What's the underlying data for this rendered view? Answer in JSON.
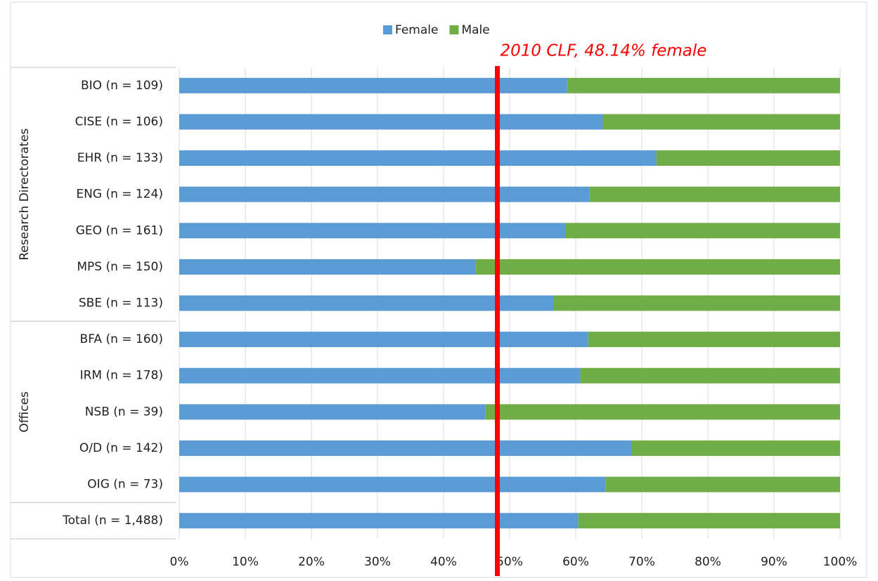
{
  "chart_data": {
    "type": "stacked_bar_horizontal",
    "categories": [
      "BIO (n = 109)",
      "CISE (n = 106)",
      "EHR (n = 133)",
      "ENG (n = 124)",
      "GEO (n = 161)",
      "MPS (n = 150)",
      "SBE (n = 113)",
      "BFA (n = 160)",
      "IRM (n = 178)",
      "NSB (n = 39)",
      "O/D (n = 142)",
      "OIG (n = 73)",
      "Total (n = 1,488)"
    ],
    "groups": [
      {
        "name": "Research Directorates",
        "count": 7
      },
      {
        "name": "Offices",
        "count": 5
      }
    ],
    "series": [
      {
        "name": "Female",
        "color": "#5b9bd5",
        "values": [
          58.7,
          64.1,
          72.2,
          62.1,
          58.4,
          44.8,
          56.7,
          61.9,
          60.7,
          46.3,
          68.4,
          64.5,
          60.4
        ]
      },
      {
        "name": "Male",
        "color": "#70ad47",
        "values": [
          41.3,
          35.9,
          27.8,
          37.9,
          41.6,
          55.2,
          43.3,
          38.1,
          39.3,
          53.7,
          31.6,
          35.5,
          39.6
        ]
      }
    ],
    "xlim": [
      0,
      100
    ],
    "xticks": [
      {
        "value": 0,
        "label": "0%"
      },
      {
        "value": 10,
        "label": "10%"
      },
      {
        "value": 20,
        "label": "20%"
      },
      {
        "value": 30,
        "label": "30%"
      },
      {
        "value": 40,
        "label": "40%"
      },
      {
        "value": 50,
        "label": "50%"
      },
      {
        "value": 60,
        "label": "60%"
      },
      {
        "value": 70,
        "label": "70%"
      },
      {
        "value": 80,
        "label": "80%"
      },
      {
        "value": 90,
        "label": "90%"
      },
      {
        "value": 100,
        "label": "100%"
      }
    ],
    "grid": true,
    "legend": "top",
    "reference_line": {
      "value": 48.14,
      "label": "2010 CLF, 48.14% female",
      "color": "#ff0000"
    }
  }
}
